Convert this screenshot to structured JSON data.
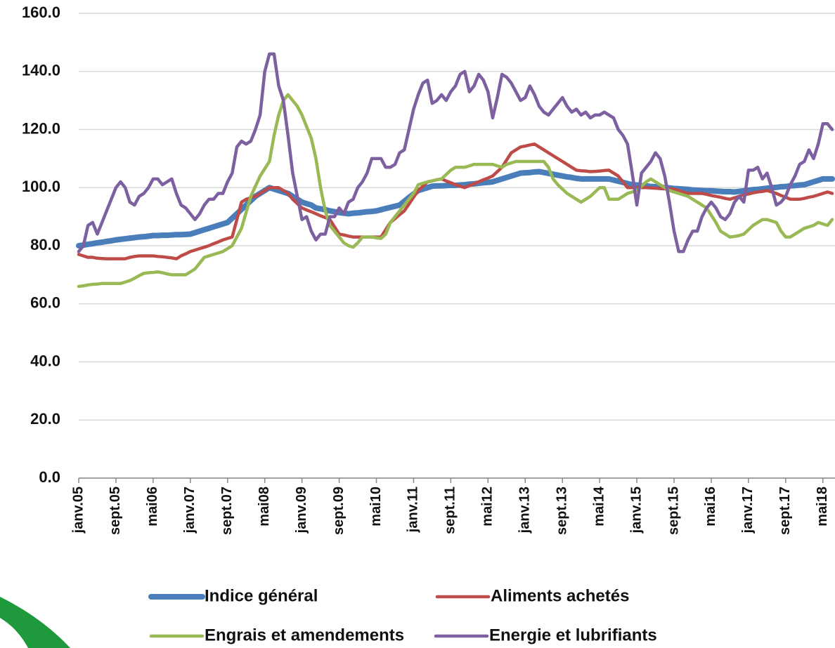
{
  "chart_data": {
    "type": "line",
    "categories": [
      "janv.05",
      null,
      null,
      null,
      null,
      null,
      null,
      null,
      "sept.05",
      null,
      null,
      null,
      null,
      null,
      null,
      null,
      "mai06",
      null,
      null,
      null,
      null,
      null,
      null,
      null,
      "janv.07",
      null,
      null,
      null,
      null,
      null,
      null,
      null,
      "sept.07",
      null,
      null,
      null,
      null,
      null,
      null,
      null,
      "mai08",
      null,
      null,
      null,
      null,
      null,
      null,
      null,
      "janv.09",
      null,
      null,
      null,
      null,
      null,
      null,
      null,
      "sept.09",
      null,
      null,
      null,
      null,
      null,
      null,
      null,
      "mai10",
      null,
      null,
      null,
      null,
      null,
      null,
      null,
      "janv.11",
      null,
      null,
      null,
      null,
      null,
      null,
      null,
      "sept.11",
      null,
      null,
      null,
      null,
      null,
      null,
      null,
      "mai12",
      null,
      null,
      null,
      null,
      null,
      null,
      null,
      "janv.13",
      null,
      null,
      null,
      null,
      null,
      null,
      null,
      "sept.13",
      null,
      null,
      null,
      null,
      null,
      null,
      null,
      "mai14",
      null,
      null,
      null,
      null,
      null,
      null,
      null,
      "janv.15",
      null,
      null,
      null,
      null,
      null,
      null,
      null,
      "sept.15",
      null,
      null,
      null,
      null,
      null,
      null,
      null,
      "mai16",
      null,
      null,
      null,
      null,
      null,
      null,
      null,
      "janv.17",
      null,
      null,
      null,
      null,
      null,
      null,
      null,
      "sept.17",
      null,
      null,
      null,
      null,
      null,
      null,
      null,
      "mai18",
      null,
      null
    ],
    "series": [
      {
        "name": "Indice général",
        "color": "#4a7ebb",
        "values": [
          80,
          80.2,
          80.5,
          80.7,
          81,
          81.2,
          81.5,
          81.7,
          82,
          82.2,
          82.4,
          82.6,
          82.8,
          83,
          83.1,
          83.3,
          83.5,
          83.5,
          83.6,
          83.6,
          83.7,
          83.8,
          83.8,
          83.9,
          84,
          84.5,
          85,
          85.5,
          86,
          86.5,
          87,
          87.5,
          88,
          89.5,
          91,
          92.5,
          94,
          95.5,
          97,
          98,
          99,
          100,
          99.5,
          99,
          98.5,
          98,
          97,
          96,
          95,
          94.5,
          94,
          93,
          92.7,
          92.4,
          92,
          91.7,
          91.4,
          91.2,
          91,
          91.2,
          91.3,
          91.5,
          91.7,
          91.8,
          92,
          92.4,
          92.8,
          93.2,
          93.6,
          94,
          95.3,
          96.6,
          97.8,
          99,
          99.5,
          100,
          100.5,
          100.6,
          100.6,
          100.7,
          100.8,
          100.8,
          100.9,
          101,
          101.2,
          101.3,
          101.5,
          101.7,
          101.8,
          102,
          102.5,
          103,
          103.5,
          104,
          104.5,
          105,
          105.1,
          105.2,
          105.4,
          105.5,
          105.2,
          104.9,
          104.6,
          104.3,
          104,
          103.7,
          103.5,
          103.2,
          103,
          103,
          103,
          103,
          103,
          103,
          103,
          102.6,
          102.2,
          101.8,
          101.4,
          101,
          100.9,
          100.7,
          100.6,
          100.4,
          100.3,
          100.1,
          100,
          99.9,
          99.7,
          99.6,
          99.5,
          99.4,
          99.2,
          99.1,
          99,
          98.9,
          98.9,
          98.8,
          98.7,
          98.6,
          98.6,
          98.5,
          98.7,
          98.9,
          99.1,
          99.3,
          99.4,
          99.6,
          99.8,
          100,
          100.1,
          100.3,
          100.4,
          100.6,
          100.7,
          100.9,
          101,
          101.5,
          102,
          102.5,
          103,
          103,
          103
        ]
      },
      {
        "name": "Aliments achetés",
        "color": "#be4b48",
        "values": [
          77,
          76.5,
          76,
          76,
          75.7,
          75.6,
          75.5,
          75.5,
          75.5,
          75.5,
          75.5,
          76,
          76.3,
          76.5,
          76.5,
          76.5,
          76.5,
          76.3,
          76.2,
          76,
          75.8,
          75.5,
          76.5,
          77.2,
          78,
          78.5,
          79,
          79.5,
          80,
          80.7,
          81.3,
          82,
          82.5,
          83,
          89,
          95,
          96,
          96.5,
          97,
          98,
          99,
          100,
          100,
          100,
          99,
          98,
          96,
          94.5,
          93,
          92.3,
          91.7,
          91,
          90.3,
          89.7,
          89,
          86.5,
          84,
          83.7,
          83.3,
          83,
          83,
          83,
          83,
          83,
          83,
          83,
          85.5,
          88,
          89.3,
          90.7,
          92,
          94.3,
          96.7,
          99,
          100.5,
          102,
          102.3,
          102.7,
          103,
          102.3,
          101.7,
          101,
          100.5,
          100,
          100.7,
          101.3,
          102,
          102.7,
          103.3,
          104,
          105.5,
          107,
          109.5,
          112,
          113,
          114,
          114.3,
          114.7,
          115,
          114,
          113,
          112,
          111,
          110,
          109,
          108,
          107,
          106,
          105.8,
          105.7,
          105.5,
          105.6,
          105.7,
          105.9,
          106,
          105,
          104,
          102,
          100,
          100,
          100,
          100,
          100,
          99.9,
          99.8,
          99.7,
          99.6,
          99.6,
          99.5,
          99,
          98.5,
          98,
          98,
          98,
          98,
          97.7,
          97.3,
          97,
          96.7,
          96.3,
          96,
          96.5,
          97,
          97.5,
          97.8,
          98.2,
          98.5,
          98.7,
          99,
          98.5,
          98,
          97.3,
          96.7,
          96,
          96,
          96,
          96.3,
          96.7,
          97,
          97.5,
          98,
          98.5,
          98
        ]
      },
      {
        "name": "Engrais et amendements",
        "color": "#98b954",
        "values": [
          66,
          66.2,
          66.5,
          66.7,
          66.8,
          67,
          67,
          67,
          67,
          67,
          67.5,
          68,
          68.8,
          69.7,
          70.5,
          70.7,
          70.8,
          71,
          70.7,
          70.3,
          70,
          70,
          70,
          70,
          71,
          72,
          74,
          76,
          76.5,
          77,
          77.5,
          78,
          79,
          80,
          83,
          86,
          91.5,
          97,
          100.5,
          104,
          106.5,
          109,
          118,
          125,
          130,
          132,
          130,
          128,
          125,
          121,
          117,
          110,
          100,
          92,
          87,
          85,
          83,
          81,
          80,
          79.5,
          81,
          83,
          83,
          83,
          82.7,
          82.5,
          84,
          88,
          90,
          92,
          94,
          96,
          98,
          101,
          101.5,
          102,
          102.3,
          102.7,
          103,
          104.5,
          106,
          107,
          107,
          107,
          107.5,
          108,
          108,
          108,
          108,
          108,
          107.5,
          107,
          108,
          108.5,
          109,
          109,
          109,
          109,
          109,
          109,
          109,
          107,
          103,
          101,
          99.5,
          98,
          97,
          96,
          95,
          96,
          97,
          98.5,
          100,
          100,
          96,
          96,
          96,
          97,
          98,
          98.5,
          99,
          100.5,
          102,
          103,
          102,
          101,
          100,
          99,
          98.5,
          98,
          97.5,
          97,
          96,
          95,
          94,
          93,
          90.5,
          88,
          85,
          84,
          83,
          83.2,
          83.5,
          84,
          85.5,
          87,
          88,
          89,
          89,
          88.5,
          88,
          85,
          83,
          83,
          84,
          85,
          86,
          86.5,
          87,
          88,
          87.5,
          87,
          89
        ]
      },
      {
        "name": "Energie et lubrifiants",
        "color": "#7d60a0",
        "values": [
          78,
          80,
          87,
          88,
          84,
          88,
          92,
          96,
          100,
          102,
          100,
          95,
          94,
          97,
          98,
          100,
          103,
          103,
          101,
          102,
          103,
          98,
          94,
          93,
          91,
          89,
          91,
          94,
          96,
          96,
          98,
          98,
          102,
          105,
          114,
          116,
          115,
          116,
          120,
          125,
          140,
          146,
          146,
          135,
          130,
          118,
          105,
          97,
          89,
          90,
          85,
          82,
          84,
          84,
          90,
          90,
          93,
          91,
          95,
          96,
          100,
          102,
          105,
          110,
          110,
          110,
          107,
          107,
          108,
          112,
          113,
          120,
          127,
          132,
          136,
          137,
          129,
          130,
          132,
          130,
          133,
          135,
          139,
          140,
          133,
          135,
          139,
          137,
          133,
          124,
          131,
          139,
          138,
          136,
          133,
          130,
          131,
          135,
          132,
          128,
          126,
          125,
          127,
          129,
          131,
          128,
          126,
          127,
          125,
          126,
          124,
          125,
          125,
          126,
          125,
          124,
          120,
          118,
          115,
          105,
          94,
          105,
          107,
          109,
          112,
          110,
          104,
          95,
          85,
          78,
          78,
          82,
          85,
          85,
          90,
          93,
          95,
          93,
          90,
          89,
          91,
          95,
          97,
          95,
          106,
          106,
          107,
          103,
          105,
          100,
          94,
          95,
          97,
          101,
          104,
          108,
          109,
          113,
          110,
          115,
          122,
          122,
          120
        ]
      }
    ],
    "ylim": [
      0,
      160
    ],
    "yticks": [
      {
        "value": 0,
        "label": "0.0"
      },
      {
        "value": 20,
        "label": "20.0"
      },
      {
        "value": 40,
        "label": "40.0"
      },
      {
        "value": 60,
        "label": "60.0"
      },
      {
        "value": 80,
        "label": "80.0"
      },
      {
        "value": 100,
        "label": "100.0"
      },
      {
        "value": 120,
        "label": "120.0"
      },
      {
        "value": 140,
        "label": "140.0"
      },
      {
        "value": 160,
        "label": "160.0"
      }
    ],
    "grid": true
  }
}
